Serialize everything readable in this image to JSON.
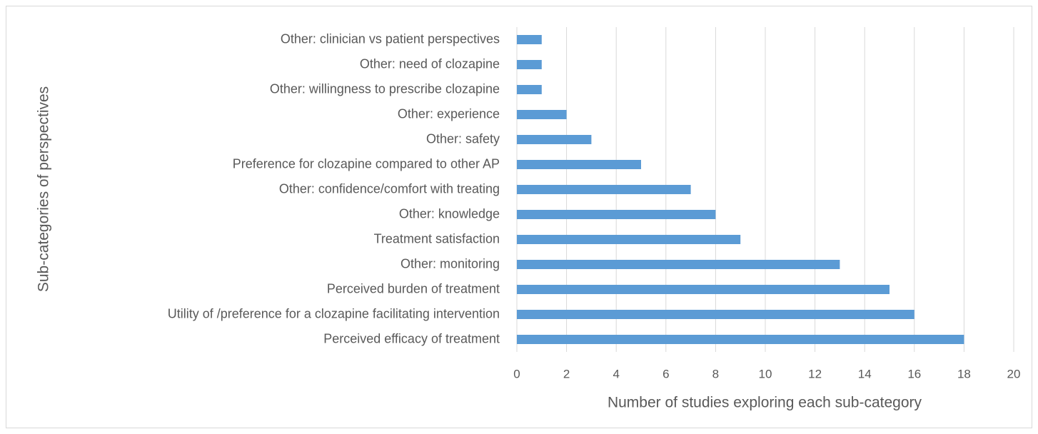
{
  "chart_data": {
    "type": "bar",
    "orientation": "horizontal",
    "x_label": "Number of studies exploring each sub-category",
    "y_label": "Sub-categories of perspectives",
    "categories": [
      "Other: clinician vs patient perspectives",
      "Other: need of clozapine",
      "Other: willingness to prescribe clozapine",
      "Other: experience",
      "Other: safety",
      "Preference for clozapine compared to other AP",
      "Other: confidence/comfort with treating",
      "Other: knowledge",
      "Treatment satisfaction",
      "Other: monitoring",
      "Perceived burden of treatment",
      "Utility of /preference for a clozapine facilitating intervention",
      "Perceived efficacy of treatment"
    ],
    "values": [
      1,
      1,
      1,
      2,
      3,
      5,
      7,
      8,
      9,
      13,
      15,
      16,
      18
    ],
    "color": "#5b9bd5",
    "xlim": [
      0,
      20
    ],
    "xticks": [
      0,
      2,
      4,
      6,
      8,
      10,
      12,
      14,
      16,
      18,
      20
    ],
    "grid": true
  }
}
